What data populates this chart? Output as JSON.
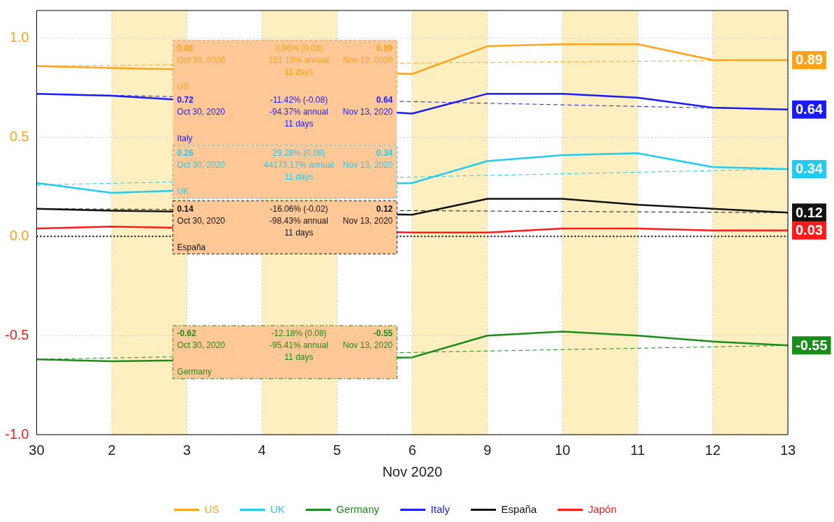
{
  "chart_data": {
    "type": "line",
    "xlabel": "Nov 2020",
    "categories": [
      "30",
      "2",
      "3",
      "4",
      "5",
      "6",
      "9",
      "10",
      "11",
      "12",
      "13"
    ],
    "ylim": [
      -1.0,
      1.14
    ],
    "yticks": [
      {
        "value": -1,
        "label": "-1.0"
      },
      {
        "value": -0.5,
        "label": "-0.5"
      },
      {
        "value": 0,
        "label": "0.0"
      },
      {
        "value": 0.5,
        "label": "0.5"
      },
      {
        "value": 1,
        "label": "1.0"
      }
    ],
    "grid": true,
    "legend": "bottom",
    "marker": "none",
    "line_style": "solid",
    "bands": [
      {
        "axis": "x",
        "from": "2",
        "to": "3",
        "color": "#fdefc0"
      },
      {
        "axis": "x",
        "from": "4",
        "to": "5",
        "color": "#fdefc0"
      },
      {
        "axis": "x",
        "from": "6",
        "to": "9",
        "color": "#fdefc0"
      },
      {
        "axis": "x",
        "from": "10",
        "to": "11",
        "color": "#fdefc0"
      },
      {
        "axis": "x",
        "from": "12",
        "to": "13",
        "color": "#fdefc0"
      }
    ],
    "ref_lines": [
      {
        "axis": "y",
        "value": 0,
        "color": "#000000",
        "line_style": "dotted"
      }
    ],
    "series": [
      {
        "name": "US",
        "color": "#ffa31a",
        "values": [
          0.86,
          0.85,
          null,
          null,
          null,
          0.82,
          0.96,
          0.97,
          0.97,
          0.89,
          0.89
        ],
        "value_labels": [
          null,
          null,
          null,
          null,
          null,
          null,
          null,
          null,
          null,
          null,
          "0.89"
        ]
      },
      {
        "name": "UK",
        "color": "#22ccf0",
        "values": [
          0.27,
          0.22,
          null,
          null,
          null,
          0.27,
          0.38,
          0.41,
          0.42,
          0.35,
          0.34
        ],
        "value_labels": [
          null,
          null,
          null,
          null,
          null,
          null,
          null,
          null,
          null,
          null,
          "0.34"
        ]
      },
      {
        "name": "Germany",
        "color": "#1a8c1a",
        "values": [
          -0.62,
          -0.63,
          null,
          null,
          null,
          -0.61,
          -0.5,
          -0.48,
          -0.5,
          -0.53,
          -0.55
        ],
        "value_labels": [
          null,
          null,
          null,
          null,
          null,
          null,
          null,
          null,
          null,
          null,
          "-0.55"
        ]
      },
      {
        "name": "Italy",
        "color": "#1a1aff",
        "values": [
          0.72,
          0.71,
          null,
          null,
          null,
          0.62,
          0.72,
          0.72,
          0.7,
          0.65,
          0.64
        ],
        "value_labels": [
          null,
          null,
          null,
          null,
          null,
          null,
          null,
          null,
          null,
          null,
          "0.64"
        ]
      },
      {
        "name": "España",
        "color": "#111111",
        "values": [
          0.14,
          0.13,
          null,
          null,
          null,
          0.11,
          0.19,
          0.19,
          0.16,
          0.14,
          0.12
        ],
        "value_labels": [
          null,
          null,
          null,
          null,
          null,
          null,
          null,
          null,
          null,
          null,
          "0.12"
        ]
      },
      {
        "name": "Japón",
        "color": "#ff1a1a",
        "values": [
          0.04,
          0.05,
          null,
          null,
          null,
          0.02,
          0.02,
          0.04,
          0.04,
          0.03,
          0.03
        ],
        "value_labels": [
          null,
          null,
          null,
          null,
          null,
          null,
          null,
          null,
          null,
          null,
          "0.03"
        ]
      },
      {
        "type": "line",
        "line_style": "dashed",
        "color": "#ffa31a",
        "values": [
          0.86,
          null,
          null,
          null,
          null,
          null,
          null,
          null,
          null,
          null,
          0.89
        ]
      },
      {
        "type": "line",
        "line_style": "dashed",
        "color": "#22ccf0",
        "values": [
          0.26,
          null,
          null,
          null,
          null,
          null,
          null,
          null,
          null,
          null,
          0.34
        ]
      },
      {
        "type": "line",
        "line_style": "dashed",
        "color": "#1a8c1a",
        "values": [
          -0.62,
          null,
          null,
          null,
          null,
          null,
          null,
          null,
          null,
          null,
          -0.55
        ]
      },
      {
        "type": "line",
        "line_style": "dashed",
        "color": "#1a1aff",
        "values": [
          0.72,
          null,
          null,
          null,
          null,
          null,
          null,
          null,
          null,
          null,
          0.64
        ]
      },
      {
        "type": "line",
        "line_style": "dashed",
        "color": "#111111",
        "values": [
          0.14,
          null,
          null,
          null,
          null,
          null,
          null,
          null,
          null,
          null,
          0.12
        ]
      }
    ],
    "annotations": [
      "0.86",
      "3.96% (0.03)",
      "0.89",
      "Oct 30, 2020",
      "151.19% annual",
      "Nov 13, 2020",
      "11 days",
      "US",
      "0.72",
      "-11.42% (-0.08)",
      "0.64",
      "Oct 30, 2020",
      "-94.37% annual",
      "Nov 13, 2020",
      "11 days",
      "Italy",
      "0.26",
      "29.28% (0.08)",
      "0.34",
      "Oct 30, 2020",
      "44173.17% annual",
      "Nov 13, 2020",
      "11 days",
      "UK",
      "0.14",
      "-16.06% (-0.02)",
      "0.12",
      "Oct 30, 2020",
      "-98.43% annual",
      "Nov 13, 2020",
      "11 days",
      "España",
      "-0.62",
      "-12.18% (0.08)",
      "-0.55",
      "Oct 30, 2020",
      "-95.41% annual",
      "Nov 13, 2020",
      "11 days",
      "Germany"
    ]
  }
}
